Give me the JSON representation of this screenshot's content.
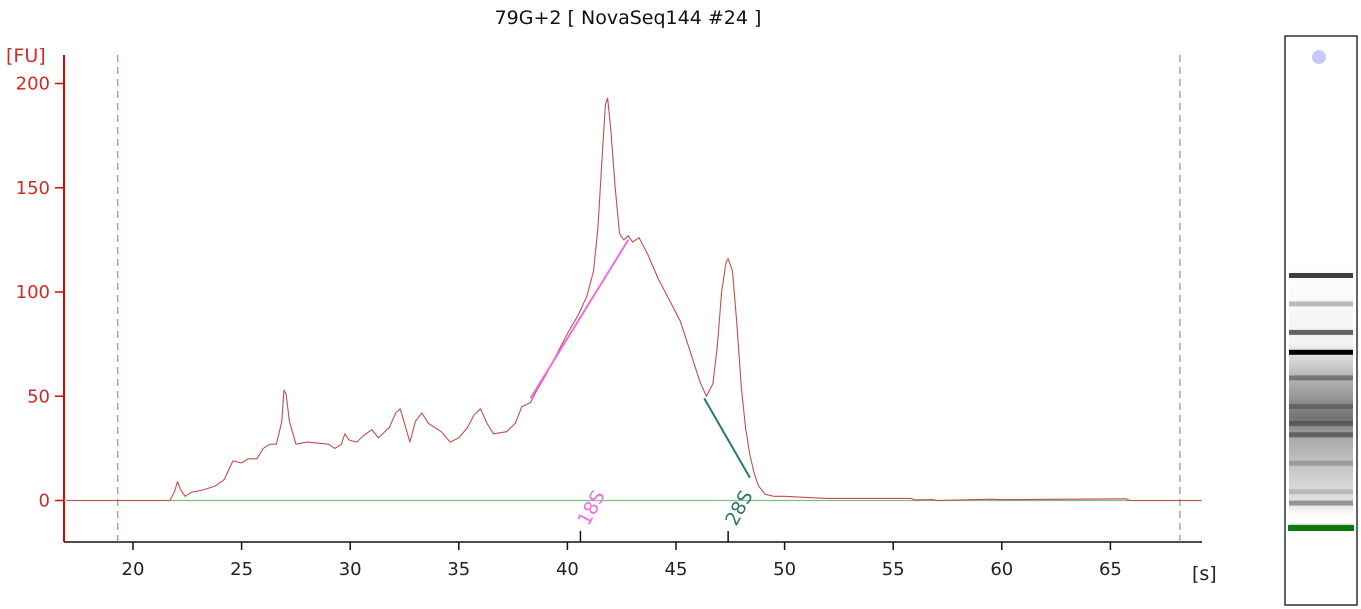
{
  "chart_data": {
    "type": "line",
    "title": "79G+2  [ NovaSeq144 #24 ]",
    "ylabel": "[FU]",
    "xlabel": "[s]",
    "xlim": [
      17,
      69.2
    ],
    "ylim": [
      -20,
      215
    ],
    "x_ticks": [
      20,
      25,
      30,
      35,
      40,
      45,
      50,
      55,
      60,
      65
    ],
    "y_ticks": [
      0,
      50,
      100,
      150,
      200
    ],
    "grid": false,
    "colors": {
      "trace": "#c0504d",
      "y_axis": "#e00000",
      "baseline": "#7fbf7f",
      "marker_lines": "#4f9a4f",
      "region_18s": "#f06ee0",
      "region_28s": "#2e7670"
    },
    "marker_lines_x": [
      19.3,
      68.2
    ],
    "series": [
      {
        "values": [
          [
            17.0,
            0
          ],
          [
            21.7,
            0
          ],
          [
            21.9,
            4
          ],
          [
            22.05,
            9
          ],
          [
            22.2,
            5
          ],
          [
            22.4,
            2
          ],
          [
            22.7,
            4
          ],
          [
            23.2,
            5
          ],
          [
            23.8,
            7
          ],
          [
            24.2,
            10
          ],
          [
            24.6,
            19
          ],
          [
            25.0,
            18
          ],
          [
            25.3,
            20
          ],
          [
            25.7,
            20
          ],
          [
            26.0,
            25
          ],
          [
            26.3,
            27
          ],
          [
            26.6,
            27
          ],
          [
            26.85,
            38
          ],
          [
            26.95,
            53
          ],
          [
            27.05,
            51
          ],
          [
            27.2,
            38
          ],
          [
            27.5,
            27
          ],
          [
            28.0,
            28
          ],
          [
            29.0,
            27
          ],
          [
            29.3,
            25
          ],
          [
            29.6,
            27
          ],
          [
            29.75,
            32
          ],
          [
            29.95,
            29
          ],
          [
            30.3,
            28
          ],
          [
            30.6,
            31
          ],
          [
            31.0,
            34
          ],
          [
            31.3,
            30
          ],
          [
            31.8,
            35
          ],
          [
            32.1,
            42
          ],
          [
            32.3,
            44
          ],
          [
            32.5,
            37
          ],
          [
            32.75,
            28
          ],
          [
            33.0,
            38
          ],
          [
            33.3,
            42
          ],
          [
            33.6,
            37
          ],
          [
            34.2,
            33
          ],
          [
            34.6,
            28
          ],
          [
            35.0,
            30
          ],
          [
            35.4,
            35
          ],
          [
            35.7,
            41
          ],
          [
            36.0,
            44
          ],
          [
            36.3,
            37
          ],
          [
            36.6,
            32
          ],
          [
            37.2,
            33
          ],
          [
            37.6,
            37
          ],
          [
            37.9,
            45
          ],
          [
            38.3,
            47
          ],
          [
            38.6,
            53
          ],
          [
            39.0,
            60
          ],
          [
            39.5,
            70
          ],
          [
            40.0,
            80
          ],
          [
            40.5,
            89
          ],
          [
            40.9,
            98
          ],
          [
            41.2,
            110
          ],
          [
            41.4,
            130
          ],
          [
            41.6,
            165
          ],
          [
            41.75,
            190
          ],
          [
            41.85,
            193
          ],
          [
            42.0,
            178
          ],
          [
            42.2,
            150
          ],
          [
            42.4,
            128
          ],
          [
            42.6,
            125
          ],
          [
            42.8,
            127
          ],
          [
            43.0,
            124
          ],
          [
            43.3,
            126
          ],
          [
            43.7,
            118
          ],
          [
            44.2,
            106
          ],
          [
            44.7,
            96
          ],
          [
            45.2,
            86
          ],
          [
            45.7,
            70
          ],
          [
            46.1,
            57
          ],
          [
            46.4,
            50
          ],
          [
            46.7,
            56
          ],
          [
            46.9,
            74
          ],
          [
            47.1,
            100
          ],
          [
            47.3,
            114
          ],
          [
            47.4,
            116
          ],
          [
            47.6,
            110
          ],
          [
            47.8,
            85
          ],
          [
            48.0,
            55
          ],
          [
            48.2,
            35
          ],
          [
            48.4,
            22
          ],
          [
            48.6,
            13
          ],
          [
            48.8,
            7
          ],
          [
            49.1,
            3
          ],
          [
            49.5,
            2
          ],
          [
            50.0,
            2
          ],
          [
            51.0,
            1.5
          ],
          [
            52.0,
            1
          ],
          [
            55.8,
            1
          ],
          [
            56.0,
            0.3
          ],
          [
            56.8,
            0.5
          ],
          [
            57.0,
            0
          ],
          [
            59.5,
            0.6
          ],
          [
            60.0,
            0.4
          ],
          [
            65.7,
            0.8
          ],
          [
            65.9,
            0
          ],
          [
            69.2,
            0
          ]
        ]
      }
    ],
    "regions": [
      {
        "label": "18S",
        "x_start": 38.3,
        "y_start": 49,
        "x_end": 42.8,
        "y_end": 125,
        "marker_x": 40.6
      },
      {
        "label": "28S",
        "x_start": 46.3,
        "y_start": 49,
        "x_end": 48.4,
        "y_end": 11,
        "marker_x": 47.4
      }
    ]
  },
  "gel_lane": {
    "bands": [
      {
        "pos": 0.03,
        "intensity": 0.25,
        "color": "#c8c8ff"
      },
      {
        "pos": 0.42,
        "intensity": 0.75
      },
      {
        "pos": 0.47,
        "intensity": 0.25
      },
      {
        "pos": 0.52,
        "intensity": 0.6
      },
      {
        "pos": 0.555,
        "intensity": 1.0
      },
      {
        "pos": 0.6,
        "intensity": 0.35
      },
      {
        "pos": 0.65,
        "intensity": 0.25
      },
      {
        "pos": 0.68,
        "intensity": 0.3
      },
      {
        "pos": 0.7,
        "intensity": 0.4
      },
      {
        "pos": 0.75,
        "intensity": 0.2
      },
      {
        "pos": 0.8,
        "intensity": 0.15
      },
      {
        "pos": 0.82,
        "intensity": 0.35
      },
      {
        "pos": 0.86,
        "intensity": 0.15
      }
    ],
    "marker_band_color": "#0a7a0a"
  }
}
